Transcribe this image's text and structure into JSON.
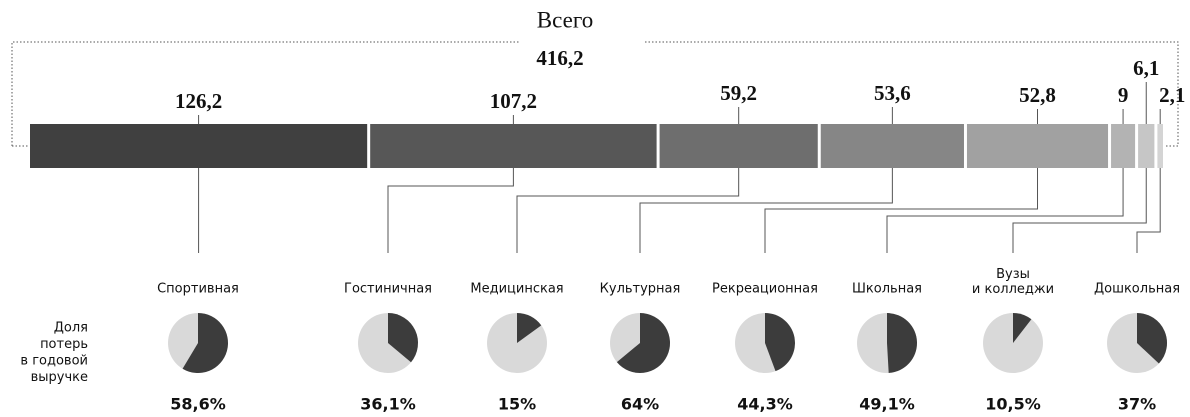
{
  "chart_data": {
    "type": "stacked-bar-pies",
    "title": "Всего",
    "total": 416.2,
    "total_label": "416,2",
    "categories": [
      "Спортивная",
      "Гостиничная",
      "Медицинская",
      "Культурная",
      "Рекреационная",
      "Школьная",
      "Вузы\nи колледжи",
      "Дошкольная"
    ],
    "values": [
      126.2,
      107.2,
      59.2,
      53.6,
      52.8,
      9,
      6.1,
      2.1
    ],
    "value_labels": [
      "126,2",
      "107,2",
      "59,2",
      "53,6",
      "52,8",
      "9",
      "6,1",
      "2,1"
    ],
    "colors": [
      "#404040",
      "#575757",
      "#6e6e6e",
      "#868686",
      "#a1a1a1",
      "#b3b3b3",
      "#c6c6c6",
      "#d4d4d4"
    ],
    "share_title": "Доля\nпотерь\nв годовой\nвыручке",
    "share_values": [
      58.6,
      36.1,
      15,
      64,
      44.3,
      49.1,
      10.5,
      37
    ],
    "share_labels": [
      "58,6%",
      "36,1%",
      "15%",
      "64%",
      "44,3%",
      "49,1%",
      "10,5%",
      "37%"
    ],
    "pie_colors": [
      "#3c3c3c",
      "#d9d9d9"
    ]
  }
}
